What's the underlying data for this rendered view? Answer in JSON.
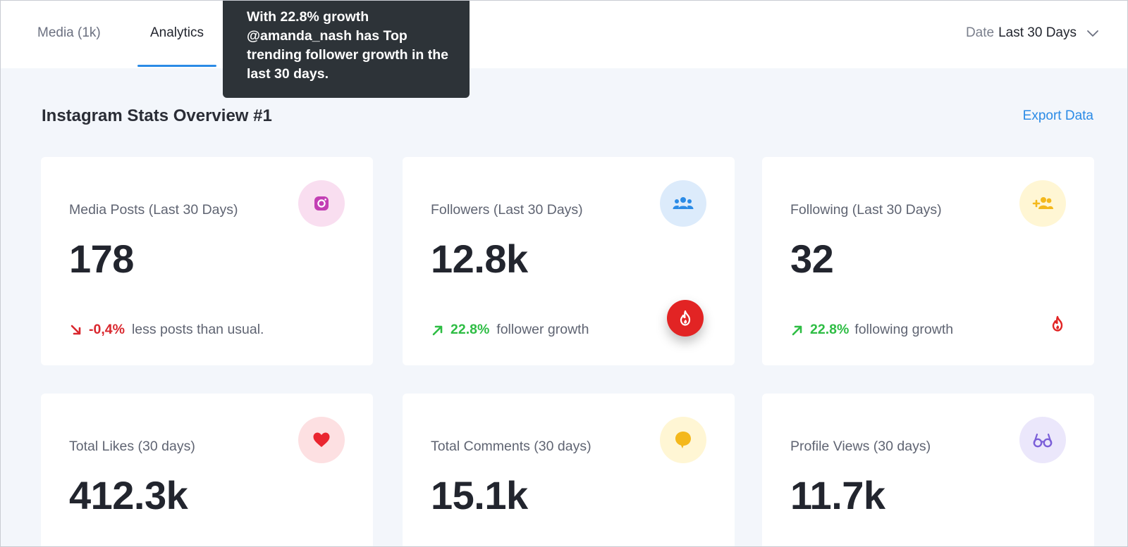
{
  "tabs": {
    "media": "Media (1k)",
    "analytics": "Analytics"
  },
  "date_filter": {
    "label": "Date",
    "value": "Last 30 Days"
  },
  "tooltip": {
    "text": "With 22.8% growth @amanda_nash has Top trending follower growth in the last 30 days."
  },
  "overview": {
    "title": "Instagram Stats Overview #1",
    "export_label": "Export Data"
  },
  "cards": [
    {
      "label": "Media Posts (Last 30 Days)",
      "value": "178",
      "icon": "instagram-icon",
      "trend_pct": "-0,4%",
      "trend_text": "less posts than usual.",
      "trend_dir": "down"
    },
    {
      "label": "Followers (Last 30 Days)",
      "value": "12.8k",
      "icon": "followers-icon",
      "trend_pct": "22.8%",
      "trend_text": "follower growth",
      "trend_dir": "up"
    },
    {
      "label": "Following (Last 30 Days)",
      "value": "32",
      "icon": "add-users-icon",
      "trend_pct": "22.8%",
      "trend_text": "following growth",
      "trend_dir": "up"
    },
    {
      "label": "Total Likes (30 days)",
      "value": "412.3k",
      "icon": "heart-icon"
    },
    {
      "label": "Total Comments (30 days)",
      "value": "15.1k",
      "icon": "comment-icon"
    },
    {
      "label": "Profile Views (30 days)",
      "value": "11.7k",
      "icon": "glasses-icon"
    }
  ],
  "colors": {
    "accent": "#2b8be6",
    "down": "#d9272e",
    "up": "#2ebd44",
    "fire": "#e22424"
  }
}
